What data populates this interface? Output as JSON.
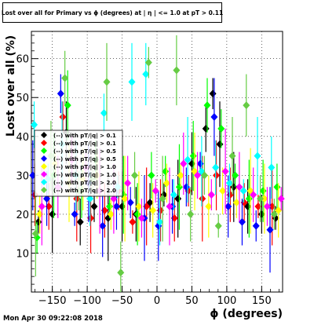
{
  "header": {
    "title": "Lost over all for Primary vs ϕ (degrees) at | η | <= 1.0 at pT > 0.11",
    "timestamp": "Mon Apr 30 09:22:08 2018"
  },
  "chart_data": {
    "type": "scatter",
    "title": "Lost over all for Primary vs ϕ (degrees) at | η | <= 1.0 at pT > 0.11",
    "xlabel": "ϕ (degrees)",
    "ylabel": "Lost over all (%)",
    "xlim": [
      -180,
      180
    ],
    "ylim": [
      0,
      67
    ],
    "xticks": [
      -150,
      -100,
      -50,
      0,
      50,
      100,
      150
    ],
    "yticks": [
      10,
      20,
      30,
      40,
      50,
      60
    ],
    "grid": true,
    "legend_position": "left",
    "series": [
      {
        "name": "(--) with pT/|q| > 0.1",
        "color": "#000000",
        "x": [
          -170,
          -150,
          -130,
          -110,
          -90,
          -70,
          -50,
          -30,
          -10,
          10,
          30,
          50,
          70,
          80,
          90,
          110,
          130,
          150,
          170
        ],
        "y": [
          18,
          20,
          41,
          18,
          22,
          19,
          22,
          20,
          23,
          25,
          24,
          33,
          42,
          51,
          38,
          27,
          22,
          20,
          19
        ]
      },
      {
        "name": "(--) with pT/|q| > 0.1",
        "color": "#ff0000",
        "x": [
          -175,
          -155,
          -135,
          -115,
          -95,
          -75,
          -55,
          -35,
          -15,
          5,
          25,
          45,
          65,
          85,
          105,
          125,
          145,
          165
        ],
        "y": [
          25,
          22,
          45,
          24,
          19,
          21,
          26,
          18,
          22,
          21,
          19,
          26,
          24,
          30,
          25,
          23,
          22,
          22
        ]
      },
      {
        "name": "(--) with pT/|q| > 0.5",
        "color": "#00ff00",
        "x": [
          -172,
          -148,
          -128,
          -108,
          -88,
          -68,
          -48,
          -28,
          -8,
          12,
          32,
          52,
          72,
          92,
          112,
          132,
          152,
          172
        ],
        "y": [
          14,
          30,
          48,
          26,
          34,
          22,
          25,
          20,
          30,
          31,
          27,
          35,
          48,
          42,
          30,
          24,
          26,
          27
        ]
      },
      {
        "name": "(--) with pT/|q| > 0.5",
        "color": "#0000ff",
        "x": [
          -178,
          -158,
          -138,
          -118,
          -98,
          -78,
          -58,
          -38,
          -18,
          2,
          22,
          42,
          62,
          82,
          102,
          122,
          142,
          162
        ],
        "y": [
          30,
          24,
          51,
          20,
          28,
          17,
          22,
          23,
          19,
          17,
          22,
          27,
          33,
          45,
          22,
          18,
          17,
          16
        ]
      },
      {
        "name": "(--) with pT/|q| > 1.0",
        "color": "#ffff00",
        "x": [
          -168,
          -146,
          -126,
          -106,
          -86,
          -66,
          -46,
          -26,
          -6,
          14,
          34,
          54,
          74,
          94,
          114,
          134,
          154,
          174
        ],
        "y": [
          20,
          33,
          28,
          29,
          30,
          20,
          24,
          22,
          21,
          28,
          30,
          31,
          22,
          26,
          23,
          26,
          24,
          21
        ]
      },
      {
        "name": "(--) with pT/|q| > 1.0",
        "color": "#ff00ff",
        "x": [
          -165,
          -142,
          -122,
          -102,
          -82,
          -62,
          -42,
          -22,
          -2,
          18,
          38,
          58,
          78,
          98,
          118,
          138,
          158,
          178
        ],
        "y": [
          22,
          27,
          34,
          32,
          26,
          24,
          28,
          19,
          26,
          22,
          33,
          30,
          25,
          31,
          27,
          25,
          22,
          24
        ]
      },
      {
        "name": "(--) with pT/|q| > 2.0",
        "color": "#00ffff",
        "x": [
          -176,
          -156,
          -136,
          -116,
          -96,
          -76,
          -56,
          -36,
          -16,
          4,
          24,
          44,
          64,
          84,
          104,
          124,
          144,
          164
        ],
        "y": [
          43,
          29,
          38,
          30,
          24,
          46,
          27,
          54,
          56,
          18,
          25,
          34,
          31,
          32,
          28,
          26,
          35,
          32
        ]
      },
      {
        "name": "(--) with pT/|q| > 2.0",
        "color": "#66cc44",
        "x": [
          -174,
          -152,
          -132,
          -112,
          -92,
          -72,
          -52,
          -32,
          -12,
          8,
          28,
          48,
          68,
          88,
          108,
          128,
          148,
          168
        ],
        "y": [
          15,
          35,
          55,
          26,
          29,
          54,
          5,
          30,
          59,
          24,
          57,
          20,
          30,
          17,
          35,
          48,
          24,
          20
        ]
      }
    ]
  }
}
